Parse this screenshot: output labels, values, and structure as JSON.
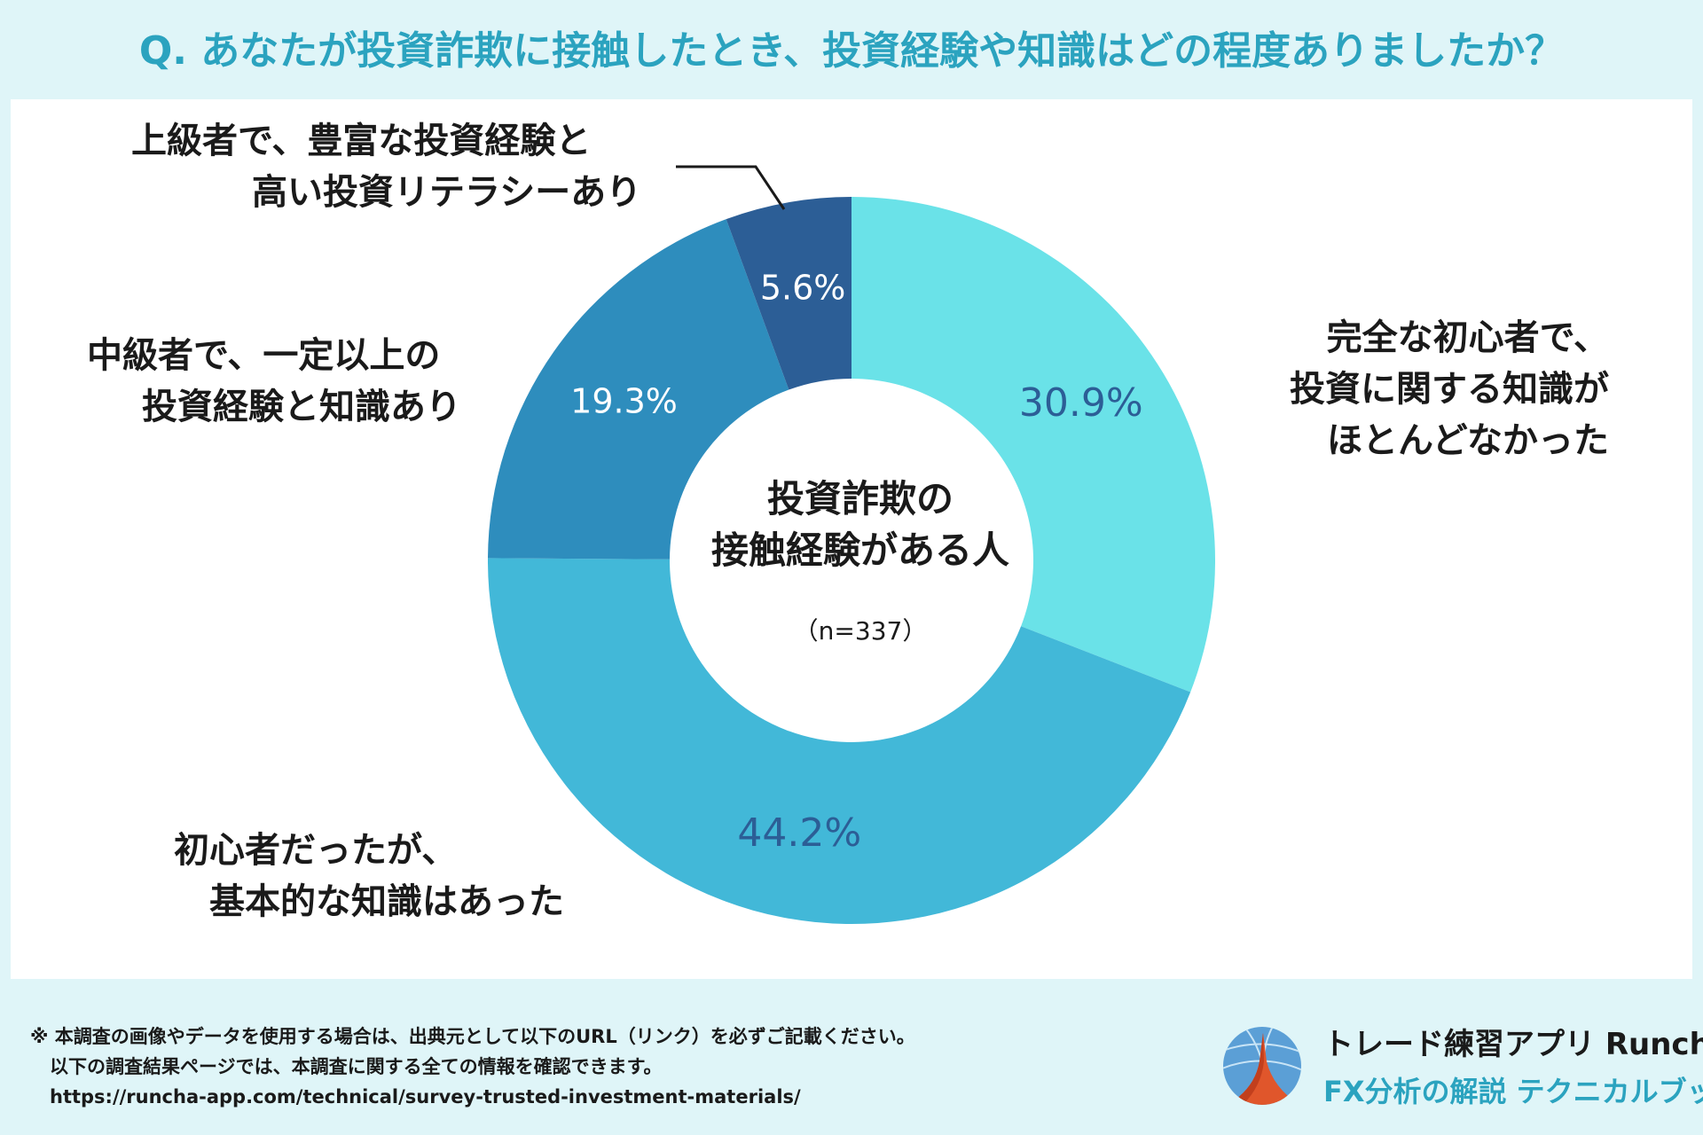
{
  "title": "Q. あなたが投資詐欺に接触したとき、投資経験や知識はどの程度ありましたか？",
  "chart_data": {
    "type": "pie",
    "subtype": "donut",
    "title": "Q. あなたが投資詐欺に接触したとき、投資経験や知識はどの程度ありましたか？",
    "center_text": [
      "投資詐欺の",
      "接触経験がある人"
    ],
    "center_sample": "（n=337）",
    "slices": [
      {
        "label_lines": [
          "完全な初心者で、",
          "投資に関する知識が",
          "ほとんどなかった"
        ],
        "value": 30.9,
        "value_label": "30.9%",
        "color": "#6ae2e8",
        "value_color": "#2c5e96"
      },
      {
        "label_lines": [
          "初心者だったが、",
          "基本的な知識はあった"
        ],
        "value": 44.2,
        "value_label": "44.2%",
        "color": "#42b8d8",
        "value_color": "#2c5e96"
      },
      {
        "label_lines": [
          "中級者で、一定以上の",
          "投資経験と知識あり"
        ],
        "value": 19.3,
        "value_label": "19.3%",
        "color": "#2e8dbd",
        "value_color": "#ffffff"
      },
      {
        "label_lines": [
          "上級者で、豊富な投資経験と",
          "高い投資リテラシーあり"
        ],
        "value": 5.6,
        "value_label": "5.6%",
        "color": "#2c5e96",
        "value_color": "#ffffff"
      }
    ]
  },
  "footer": {
    "note_line1": "※ 本調査の画像やデータを使用する場合は、出典元として以下のURL（リンク）を必ずご記載ください。",
    "note_line2": "以下の調査結果ページでは、本調査に関する全ての情報を確認できます。",
    "url": "https://runcha-app.com/technical/survey-trusted-investment-materials/"
  },
  "brand": {
    "line1": "トレード練習アプリ  Runcha",
    "line2": "FX分析の解説  テクニカルブック",
    "icon": "runcha-logo-icon",
    "accent_color": "#2ba3bf"
  }
}
